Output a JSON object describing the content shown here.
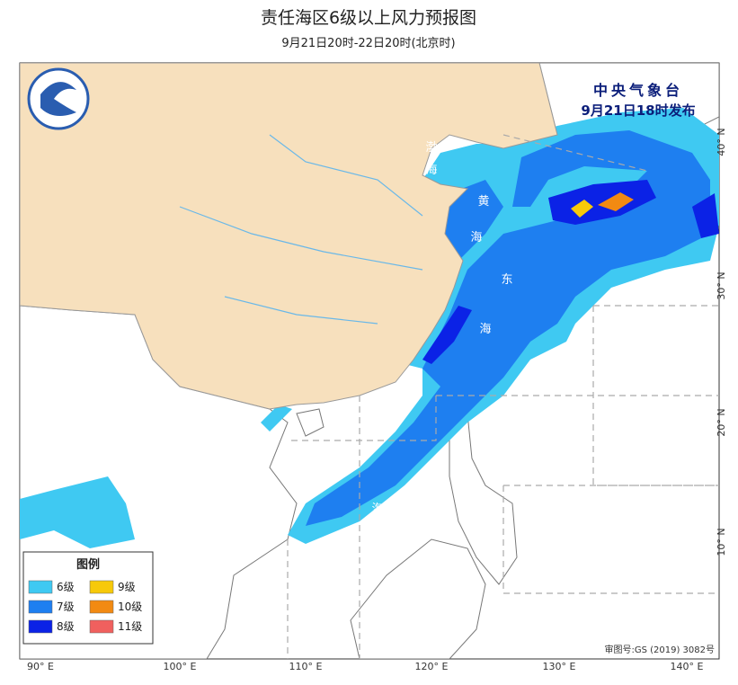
{
  "header": {
    "title": "责任海区6级以上风力预报图",
    "subtitle": "9月21日20时-22日20时(北京时)"
  },
  "issuer": {
    "name": "中央气象台",
    "time": "9月21日18时发布"
  },
  "legend": {
    "title": "图例",
    "items": [
      {
        "label": "6级",
        "color": "#3fc9f2"
      },
      {
        "label": "7级",
        "color": "#1e7ff0"
      },
      {
        "label": "8级",
        "color": "#0b22e6"
      },
      {
        "label": "9级",
        "color": "#f7c90a"
      },
      {
        "label": "10级",
        "color": "#f28a12"
      },
      {
        "label": "11级",
        "color": "#f0605e"
      }
    ]
  },
  "lon_labels": [
    "90° E",
    "100° E",
    "110° E",
    "120° E",
    "130° E",
    "140° E"
  ],
  "lat_labels": [
    "40° N",
    "30° N",
    "20° N",
    "10° N"
  ],
  "sea_labels": {
    "bohai": [
      "渤",
      "海"
    ],
    "huanghai": [
      "黄",
      "海"
    ],
    "donghai": [
      "东",
      "海"
    ],
    "nanhai": [
      "南",
      "海"
    ]
  },
  "approval": "审图号:GS (2019) 3082号"
}
